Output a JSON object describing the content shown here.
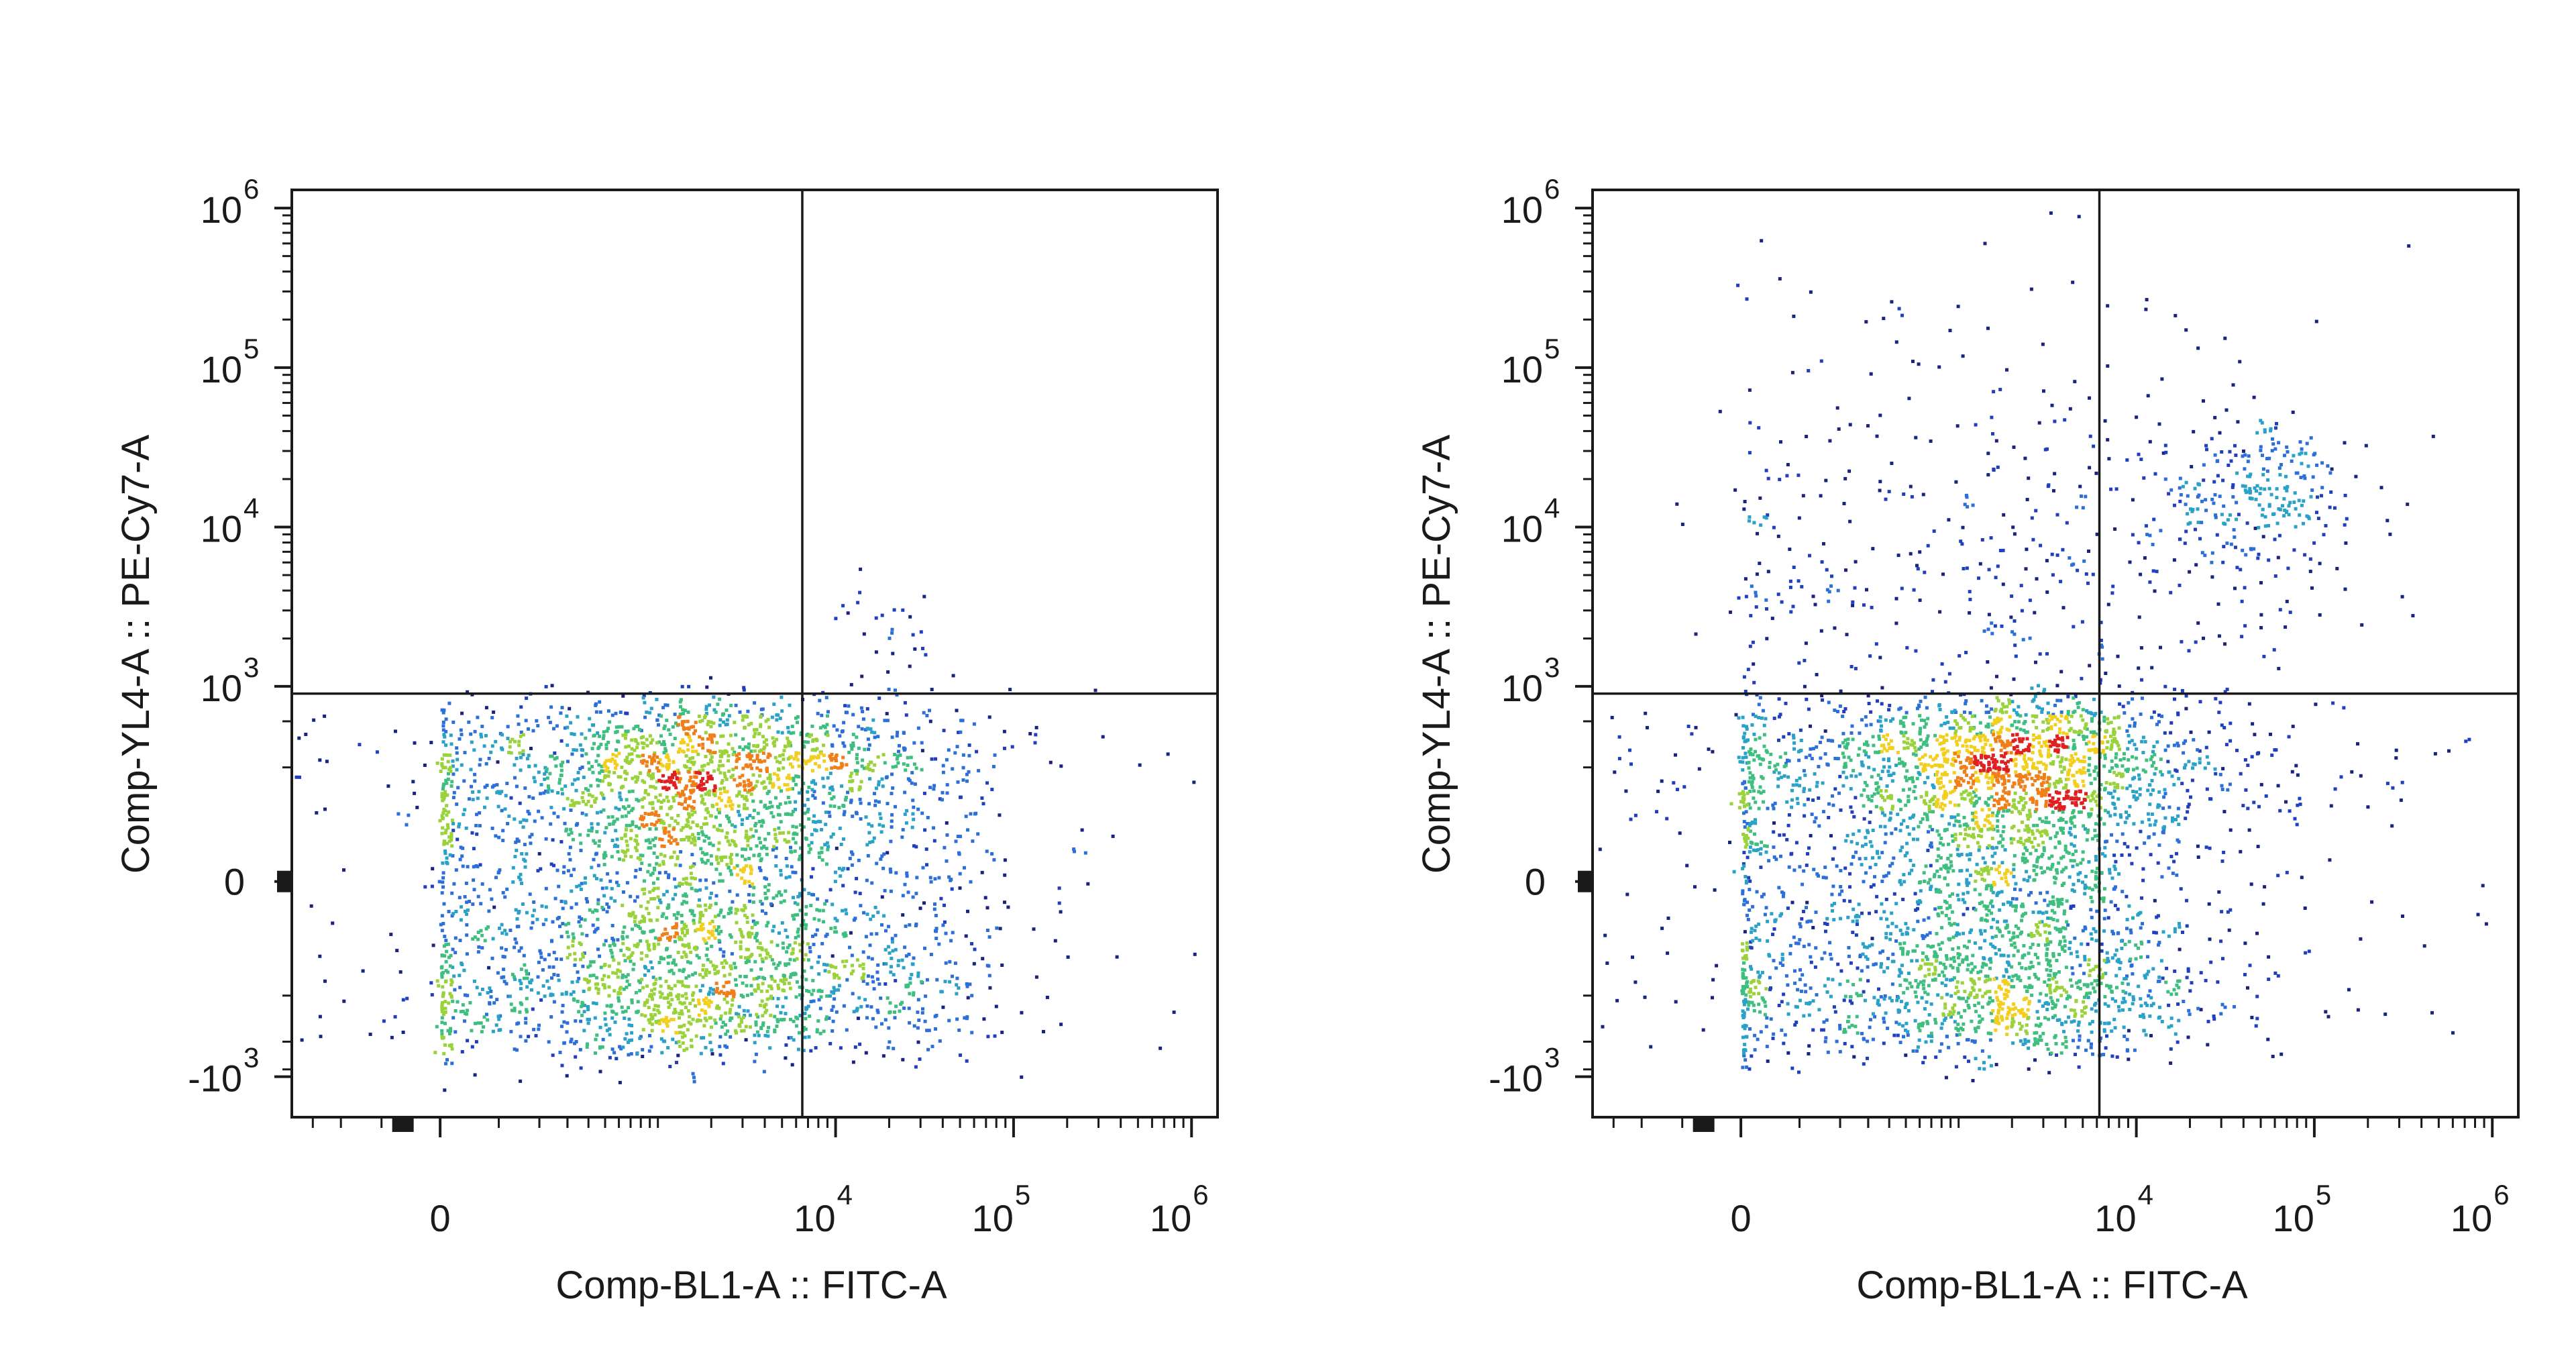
{
  "chart_data": [
    {
      "type": "scatter",
      "panel": "left",
      "xlabel": "Comp-BL1-A :: FITC-A",
      "ylabel": "Comp-YL4-A :: PE-Cy7-A",
      "x_scale": "biexponential",
      "y_scale": "biexponential",
      "x_ticks": [
        {
          "value": 0,
          "label": "0",
          "exp": ""
        },
        {
          "value": 10000,
          "label": "10",
          "exp": "4"
        },
        {
          "value": 100000,
          "label": "10",
          "exp": "5"
        },
        {
          "value": 1000000,
          "label": "10",
          "exp": "6"
        }
      ],
      "y_ticks": [
        {
          "value": -1000,
          "label": "-10",
          "exp": "3"
        },
        {
          "value": 0,
          "label": "0",
          "exp": ""
        },
        {
          "value": 1000,
          "label": "10",
          "exp": "3"
        },
        {
          "value": 10000,
          "label": "10",
          "exp": "4"
        },
        {
          "value": 100000,
          "label": "10",
          "exp": "5"
        },
        {
          "value": 1000000,
          "label": "10",
          "exp": "6"
        }
      ],
      "quadrant_gate": {
        "x": 6500,
        "y": 900
      },
      "populations": [
        {
          "x": 1800,
          "y": 50,
          "count": 2600,
          "sx": 0.55,
          "sy": 0.22
        },
        {
          "x": 400,
          "y": 0,
          "count": 1100,
          "sx": 1.3,
          "sy": 0.28
        },
        {
          "x": 25000,
          "y": 0,
          "count": 260,
          "sx": 0.28,
          "sy": 0.22
        },
        {
          "x": 20000,
          "y": 2500,
          "count": 30,
          "sx": 0.2,
          "sy": 0.2
        }
      ]
    },
    {
      "type": "scatter",
      "panel": "right",
      "xlabel": "Comp-BL1-A :: FITC-A",
      "ylabel": "Comp-YL4-A :: PE-Cy7-A",
      "x_scale": "biexponential",
      "y_scale": "biexponential",
      "x_ticks": [
        {
          "value": 0,
          "label": "0",
          "exp": ""
        },
        {
          "value": 10000,
          "label": "10",
          "exp": "4"
        },
        {
          "value": 100000,
          "label": "10",
          "exp": "5"
        },
        {
          "value": 1000000,
          "label": "10",
          "exp": "6"
        }
      ],
      "y_ticks": [
        {
          "value": -1000,
          "label": "-10",
          "exp": "3"
        },
        {
          "value": 0,
          "label": "0",
          "exp": ""
        },
        {
          "value": 1000,
          "label": "10",
          "exp": "3"
        },
        {
          "value": 10000,
          "label": "10",
          "exp": "4"
        },
        {
          "value": 100000,
          "label": "10",
          "exp": "5"
        },
        {
          "value": 1000000,
          "label": "10",
          "exp": "6"
        }
      ],
      "quadrant_gate": {
        "x": 6200,
        "y": 900
      },
      "populations": [
        {
          "x": 2000,
          "y": 80,
          "count": 2600,
          "sx": 0.5,
          "sy": 0.25
        },
        {
          "x": 400,
          "y": 0,
          "count": 1200,
          "sx": 1.3,
          "sy": 0.3
        },
        {
          "x": 1000,
          "y": 4000,
          "count": 500,
          "sx": 1.0,
          "sy": 0.9
        },
        {
          "x": 45000,
          "y": 18000,
          "count": 240,
          "sx": 0.25,
          "sy": 0.25
        },
        {
          "x": 20000,
          "y": 4000,
          "count": 80,
          "sx": 0.45,
          "sy": 0.6
        }
      ]
    }
  ]
}
